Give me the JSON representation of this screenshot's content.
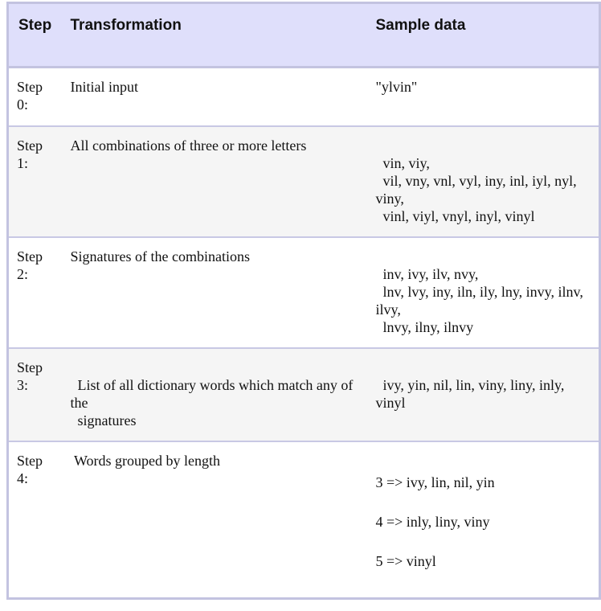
{
  "table": {
    "headers": {
      "step": "Step",
      "transformation": "Transformation",
      "sample": "Sample data"
    },
    "rows": [
      {
        "step": "Step 0:",
        "transformation": "Initial input",
        "sample": "\"ylvin\""
      },
      {
        "step": "Step 1:",
        "transformation": "All combinations of three or more letters",
        "sample": "\n  vin, viy,\n  vil, vny, vnl, vyl, iny, inl, iyl, nyl, viny,\n  vinl, viyl, vnyl, inyl, vinyl"
      },
      {
        "step": "Step 2:",
        "transformation": "Signatures of the combinations",
        "sample": "\n  inv, ivy, ilv, nvy,\n  lnv, lvy, iny, iln, ily, lny, invy, ilnv, ilvy,\n  lnvy, ilny, ilnvy"
      },
      {
        "step": "Step 3:",
        "transformation": "\n  List of all dictionary words which match any of the\n  signatures",
        "sample": "\n  ivy, yin, nil, lin, viny, liny, inly, vinyl"
      },
      {
        "step": "Step 4:",
        "transformation": " Words grouped by length",
        "groups": [
          "3 => ivy, lin, nil, yin",
          "4 => inly, liny, viny",
          "5 => vinyl"
        ]
      }
    ]
  }
}
